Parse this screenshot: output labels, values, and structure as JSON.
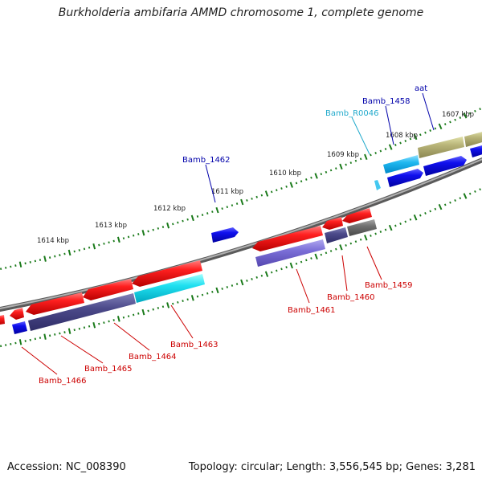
{
  "title": "Burkholderia ambifaria AMMD chromosome 1, complete genome",
  "footer": {
    "accession": "Accession: NC_008390",
    "summary": "Topology: circular; Length: 3,556,545 bp; Genes: 3,281"
  },
  "colors": {
    "forward_label": "#0000aa",
    "reverse_label": "#cc0000",
    "rna_label": "#22aacc",
    "backbone": "#808080",
    "tick": "#1a7a1a"
  },
  "scale_labels": [
    {
      "id": "kbp-1607",
      "text": "1607 kbp"
    },
    {
      "id": "kbp-1608",
      "text": "1608 kbp"
    },
    {
      "id": "kbp-1609",
      "text": "1609 kbp"
    },
    {
      "id": "kbp-1610",
      "text": "1610 kbp"
    },
    {
      "id": "kbp-1611",
      "text": "1611 kbp"
    },
    {
      "id": "kbp-1612",
      "text": "1612 kbp"
    },
    {
      "id": "kbp-1613",
      "text": "1613 kbp"
    },
    {
      "id": "kbp-1614",
      "text": "1614 kbp"
    }
  ],
  "gene_labels": [
    {
      "id": "aat",
      "text": "aat",
      "strand": "forward"
    },
    {
      "id": "bamb-1458",
      "text": "Bamb_1458",
      "strand": "forward"
    },
    {
      "id": "bamb-r0046",
      "text": "Bamb_R0046",
      "strand": "rna"
    },
    {
      "id": "bamb-1462",
      "text": "Bamb_1462",
      "strand": "forward"
    },
    {
      "id": "bamb-1459",
      "text": "Bamb_1459",
      "strand": "reverse"
    },
    {
      "id": "bamb-1460",
      "text": "Bamb_1460",
      "strand": "reverse"
    },
    {
      "id": "bamb-1461",
      "text": "Bamb_1461",
      "strand": "reverse"
    },
    {
      "id": "bamb-1463",
      "text": "Bamb_1463",
      "strand": "reverse"
    },
    {
      "id": "bamb-1464",
      "text": "Bamb_1464",
      "strand": "reverse"
    },
    {
      "id": "bamb-1465",
      "text": "Bamb_1465",
      "strand": "reverse"
    },
    {
      "id": "bamb-1466",
      "text": "Bamb_1466",
      "strand": "reverse"
    }
  ]
}
